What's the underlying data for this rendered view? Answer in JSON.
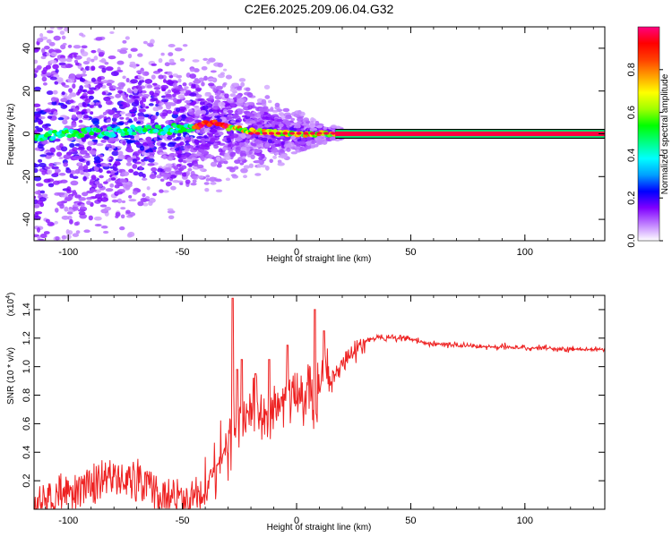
{
  "title": "C2E6.2025.209.06.04.G32",
  "colorbar": {
    "label": "Normalized spectral amplitude",
    "ticks": [
      0.0,
      0.2,
      0.4,
      0.6,
      0.8
    ],
    "tick_labels": [
      "0.0",
      "0.2",
      "0.4",
      "0.6",
      "0.8"
    ],
    "colors": [
      "#ffffff",
      "#c080ff",
      "#8000ff",
      "#0000ff",
      "#00a0ff",
      "#00ffff",
      "#00ff80",
      "#00ff00",
      "#a0ff00",
      "#ffff00",
      "#ffa000",
      "#ff4000",
      "#ff0000",
      "#ff0080"
    ]
  },
  "chart_data": [
    {
      "type": "heatmap",
      "xlabel": "Height of straight line (km)",
      "ylabel": "Frequency (Hz)",
      "xlim": [
        -115,
        135
      ],
      "ylim": [
        -50,
        50
      ],
      "xticks": [
        -100,
        -50,
        0,
        50,
        100
      ],
      "xtick_labels": [
        "-100",
        "-50",
        "0",
        "50",
        "100"
      ],
      "yticks": [
        -40,
        -20,
        0,
        20,
        40
      ],
      "ytick_labels": [
        "-40",
        "-20",
        "0",
        "20",
        "40"
      ],
      "grid": false,
      "ridge": {
        "description_x": [
          -115,
          -100,
          -80,
          -60,
          -45,
          -40,
          -35,
          -30,
          -20,
          -10,
          0,
          10,
          17,
          135
        ],
        "y": [
          -1,
          0,
          1,
          2,
          3,
          4.5,
          5,
          3,
          1.5,
          0.5,
          0,
          0,
          0,
          0
        ]
      }
    },
    {
      "type": "line",
      "xlabel": "Height of straight line (km)",
      "ylabel": "SNR (10 * v/v)",
      "y_scale_label": "(x10",
      "y_scale_exponent": "4",
      "y_multiplier": 10000,
      "xlim": [
        -115,
        135
      ],
      "ylim": [
        0,
        1.5
      ],
      "xticks": [
        -100,
        -50,
        0,
        50,
        100
      ],
      "xtick_labels": [
        "-100",
        "-50",
        "0",
        "50",
        "100"
      ],
      "yticks": [
        0.2,
        0.4,
        0.6,
        0.8,
        1.0,
        1.2,
        1.4
      ],
      "ytick_labels": [
        "0.2",
        "0.4",
        "0.6",
        "0.8",
        "1.0",
        "1.2",
        "1.4"
      ],
      "grid": false,
      "series": [
        {
          "color": "#ee2222",
          "x": [
            -115,
            -110,
            -105,
            -100,
            -95,
            -90,
            -85,
            -80,
            -75,
            -70,
            -65,
            -60,
            -55,
            -50,
            -45,
            -40,
            -38,
            -35,
            -32,
            -30,
            -28,
            -25,
            -22,
            -20,
            -18,
            -15,
            -12,
            -10,
            -8,
            -5,
            -2,
            0,
            2,
            5,
            8,
            10,
            12,
            15,
            18,
            20,
            22,
            25,
            28,
            30,
            35,
            40,
            45,
            50,
            55,
            60,
            70,
            80,
            90,
            100,
            110,
            120,
            130,
            135
          ],
          "y": [
            0.02,
            0.05,
            0.09,
            0.12,
            0.15,
            0.18,
            0.2,
            0.22,
            0.21,
            0.2,
            0.15,
            0.1,
            0.08,
            0.07,
            0.08,
            0.15,
            0.22,
            0.3,
            0.4,
            0.5,
            0.55,
            0.6,
            0.65,
            0.7,
            0.65,
            0.7,
            0.65,
            0.7,
            0.75,
            0.8,
            0.85,
            0.75,
            0.8,
            0.85,
            0.6,
            0.85,
            0.95,
            0.9,
            0.95,
            1.0,
            1.05,
            1.1,
            1.15,
            1.18,
            1.2,
            1.2,
            1.2,
            1.19,
            1.17,
            1.16,
            1.15,
            1.14,
            1.14,
            1.13,
            1.13,
            1.12,
            1.12,
            1.12
          ]
        }
      ],
      "peaks": [
        {
          "x": -28,
          "y": 1.48
        },
        {
          "x": -26,
          "y": 0.98
        },
        {
          "x": -24,
          "y": 1.05
        },
        {
          "x": -18,
          "y": 0.95
        },
        {
          "x": -12,
          "y": 1.05
        },
        {
          "x": -4,
          "y": 1.15
        },
        {
          "x": 8,
          "y": 1.4
        },
        {
          "x": 12,
          "y": 1.25
        }
      ]
    }
  ]
}
